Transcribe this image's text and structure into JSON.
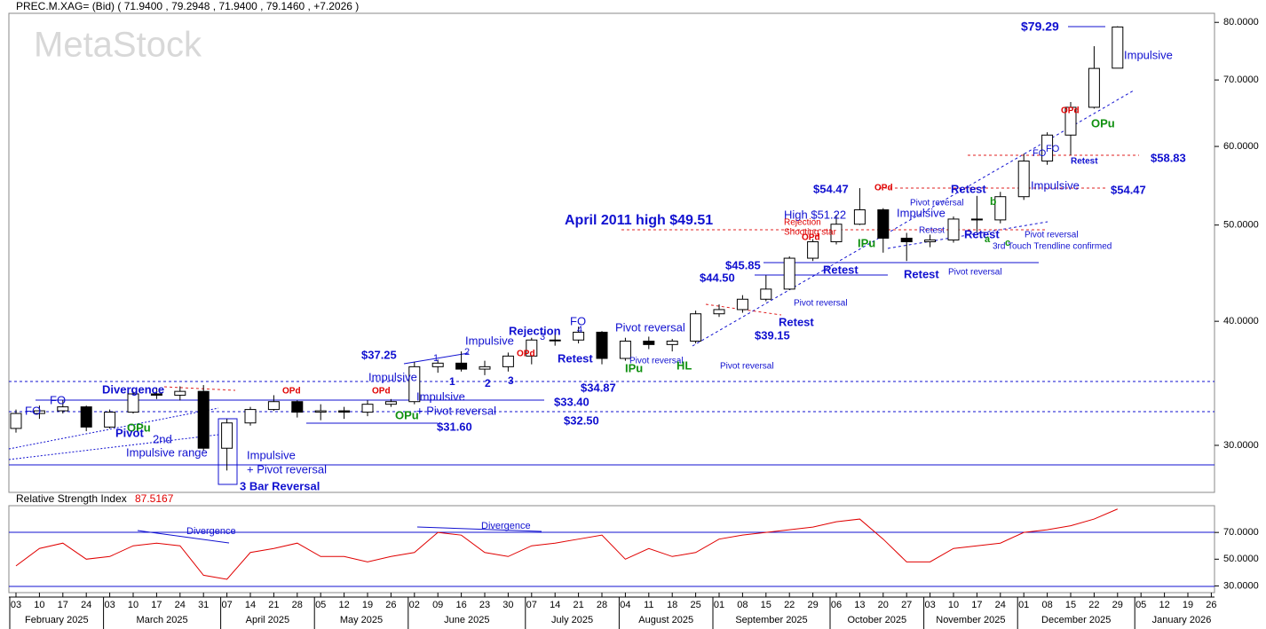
{
  "chart_data": [
    {
      "type": "candlestick",
      "title": "PREC.M.XAG= (Bid) ( 71.9400 , 79.2948 , 71.9400 , 79.1460 , +7.2026 )",
      "watermark": "MetaStock",
      "categories": [
        "03",
        "10",
        "17",
        "24",
        "03",
        "10",
        "17",
        "24",
        "31",
        "07",
        "14",
        "21",
        "28",
        "05",
        "12",
        "19",
        "26",
        "02",
        "09",
        "16",
        "23",
        "30",
        "07",
        "14",
        "21",
        "28",
        "04",
        "11",
        "18",
        "25",
        "01",
        "08",
        "15",
        "22",
        "29",
        "06",
        "13",
        "20",
        "27",
        "03",
        "10",
        "17",
        "24",
        "01",
        "08",
        "15",
        "22",
        "29",
        "05",
        "12",
        "19",
        "26"
      ],
      "months": [
        "February 2025",
        "March 2025",
        "April 2025",
        "May 2025",
        "June 2025",
        "July 2025",
        "August 2025",
        "September 2025",
        "October 2025",
        "November 2025",
        "December 2025",
        "January 2026"
      ],
      "open": [
        31.2,
        32.3,
        32.5,
        32.8,
        31.3,
        32.4,
        33.8,
        33.7,
        34.0,
        29.8,
        31.6,
        32.6,
        33.2,
        32.4,
        32.5,
        32.4,
        33.0,
        33.2,
        36.0,
        36.3,
        35.8,
        36.0,
        36.9,
        38.3,
        38.3,
        39.0,
        36.7,
        38.2,
        37.9,
        38.2,
        40.7,
        41.1,
        42.1,
        43.1,
        46.3,
        48.1,
        50.1,
        51.8,
        48.5,
        48.1,
        48.3,
        50.7,
        50.6,
        53.4,
        58.0,
        61.6,
        65.7,
        71.94,
        null,
        null,
        null,
        null
      ],
      "high": [
        32.6,
        32.9,
        33.3,
        32.9,
        32.6,
        34.0,
        34.3,
        34.4,
        34.5,
        31.9,
        32.8,
        33.7,
        33.3,
        33.0,
        32.8,
        33.3,
        33.4,
        36.4,
        36.6,
        37.3,
        36.5,
        37.2,
        38.5,
        38.8,
        39.5,
        39.1,
        38.5,
        38.6,
        38.4,
        41.0,
        41.6,
        42.5,
        44.5,
        46.5,
        48.4,
        51.2,
        54.47,
        52.0,
        49.1,
        48.9,
        51.0,
        53.5,
        54.0,
        59.0,
        62.0,
        66.5,
        75.7,
        79.29,
        null,
        null,
        null,
        null
      ],
      "low": [
        30.9,
        31.9,
        32.3,
        31.0,
        31.2,
        32.3,
        33.4,
        33.3,
        29.6,
        28.3,
        31.4,
        32.5,
        32.0,
        31.8,
        31.9,
        32.1,
        32.8,
        33.0,
        35.5,
        35.6,
        35.3,
        35.6,
        36.2,
        37.8,
        38.0,
        36.2,
        36.5,
        37.5,
        37.3,
        38.0,
        40.4,
        40.8,
        41.9,
        43.0,
        46.0,
        47.8,
        50.0,
        46.9,
        46.0,
        47.5,
        48.0,
        49.2,
        50.2,
        53.0,
        57.5,
        58.8,
        65.5,
        71.94,
        null,
        null,
        null,
        null
      ],
      "close": [
        32.3,
        32.5,
        32.8,
        31.3,
        32.4,
        33.8,
        33.7,
        34.0,
        29.8,
        31.6,
        32.6,
        33.2,
        32.4,
        32.5,
        32.4,
        33.0,
        33.2,
        36.0,
        36.3,
        35.8,
        36.0,
        36.9,
        38.3,
        38.3,
        39.0,
        36.7,
        38.2,
        37.9,
        38.2,
        40.7,
        41.1,
        42.1,
        43.1,
        46.3,
        48.1,
        50.1,
        51.8,
        48.5,
        48.1,
        48.3,
        50.7,
        50.6,
        53.4,
        58.0,
        61.6,
        65.7,
        71.9,
        79.15,
        null,
        null,
        null,
        null
      ],
      "log_scale": true,
      "ylim": [
        26.9,
        81.7
      ],
      "yticks": [
        {
          "value": 30,
          "label": "30.0000"
        },
        {
          "value": 40,
          "label": "40.0000"
        },
        {
          "value": 50,
          "label": "50.0000"
        },
        {
          "value": 60,
          "label": "60.0000"
        },
        {
          "value": 70,
          "label": "70.0000"
        },
        {
          "value": 80,
          "label": "80.0000"
        }
      ],
      "annotations": [
        "$79.29",
        "Impulsive",
        "OPd",
        "OPu",
        "FO",
        "FO",
        "Retest",
        "$58.83",
        "$54.47",
        "OPd",
        "Retest",
        "Impulsive",
        "$54.47",
        "Pivot reversal",
        "b",
        "High $51.22",
        "Impulsive",
        "April 2011 high $49.51",
        "Rejection",
        "Shooting star",
        "OPd",
        "IPu",
        "Retest",
        "Retest",
        "Pivot reversal",
        "a",
        "c",
        "3rd Touch Trendline confirmed",
        "$45.85",
        "Retest",
        "Retest",
        "Pivot reversal",
        "$44.50",
        "Pivot reversal",
        "Retest",
        "$39.15",
        "FO",
        "Pivot reversal",
        "Rejection",
        "3",
        "4",
        "Impulsive",
        "$37.25",
        "OPd",
        "Retest",
        "1",
        "2",
        "Pivot reversal",
        "IPu",
        "HL",
        "Pivot reversal",
        "1",
        "2",
        "3",
        "Impulsive",
        "$34.87",
        "Divergence",
        "OPd",
        "OPd",
        "FO",
        "Impulsive",
        "$33.40",
        "FO",
        "+ Pivot reversal",
        "OPu",
        "$32.50",
        "OPu",
        "$31.60",
        "Pivot",
        "2nd",
        "Impulsive range",
        "Impulsive",
        "+ Pivot reversal",
        "3 Bar Reversal"
      ]
    },
    {
      "type": "line",
      "title": "Relative Strength Index",
      "last_value": 87.5167,
      "color": "#e00000",
      "values": [
        45,
        58,
        62,
        50,
        52,
        60,
        62,
        60,
        38,
        35,
        55,
        58,
        62,
        52,
        52,
        48,
        52,
        55,
        70,
        68,
        55,
        52,
        60,
        62,
        65,
        68,
        50,
        58,
        52,
        55,
        65,
        68,
        70,
        72,
        74,
        78,
        80,
        65,
        48,
        48,
        58,
        60,
        62,
        70,
        72,
        75,
        80,
        87.5,
        null,
        null,
        null,
        null
      ],
      "ylim": [
        25,
        90
      ],
      "yticks": [
        {
          "value": 30,
          "label": "30.0000"
        },
        {
          "value": 50,
          "label": "50.0000"
        },
        {
          "value": 70,
          "label": "70.0000"
        }
      ],
      "annotations": [
        "Divergence",
        "Divergence"
      ]
    }
  ]
}
